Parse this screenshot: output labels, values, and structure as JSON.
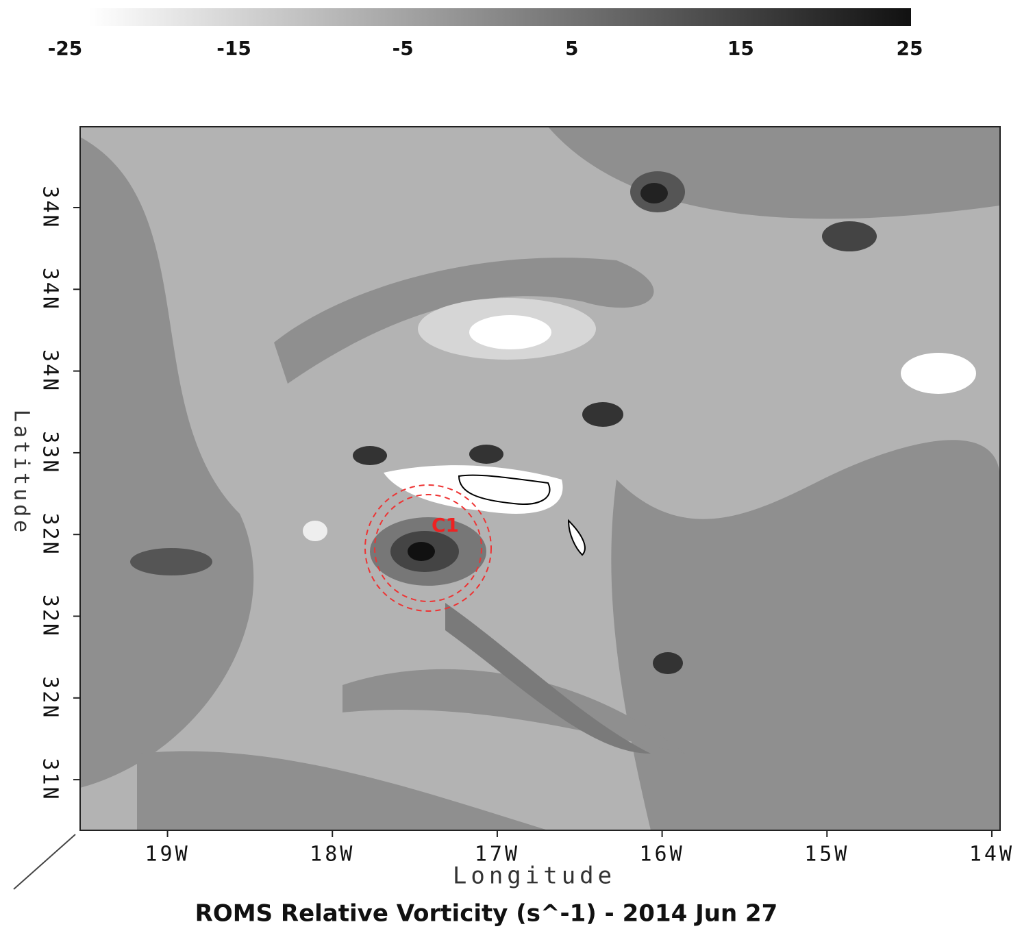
{
  "chart_data": {
    "type": "contour",
    "title": "ROMS Relative Vorticity (s^-1) - 2014 Jun 27",
    "xlabel": "Longitude",
    "ylabel": "Latitude",
    "annotation": "C1",
    "colorbar": {
      "lim": [
        -25,
        25
      ],
      "ticks": [
        -25,
        -15,
        -5,
        5,
        15,
        25
      ]
    },
    "xlim": [
      -19.53,
      -13.95
    ],
    "xticks": [
      {
        "value": -19,
        "label": "19W"
      },
      {
        "value": -18,
        "label": "18W"
      },
      {
        "value": -17,
        "label": "17W"
      },
      {
        "value": -16,
        "label": "16W"
      },
      {
        "value": -15,
        "label": "15W"
      },
      {
        "value": -14,
        "label": "14W"
      }
    ],
    "ytick_labels": [
      "34N",
      "34N",
      "34N",
      "33N",
      "32N",
      "32N",
      "32N",
      "31N"
    ]
  }
}
